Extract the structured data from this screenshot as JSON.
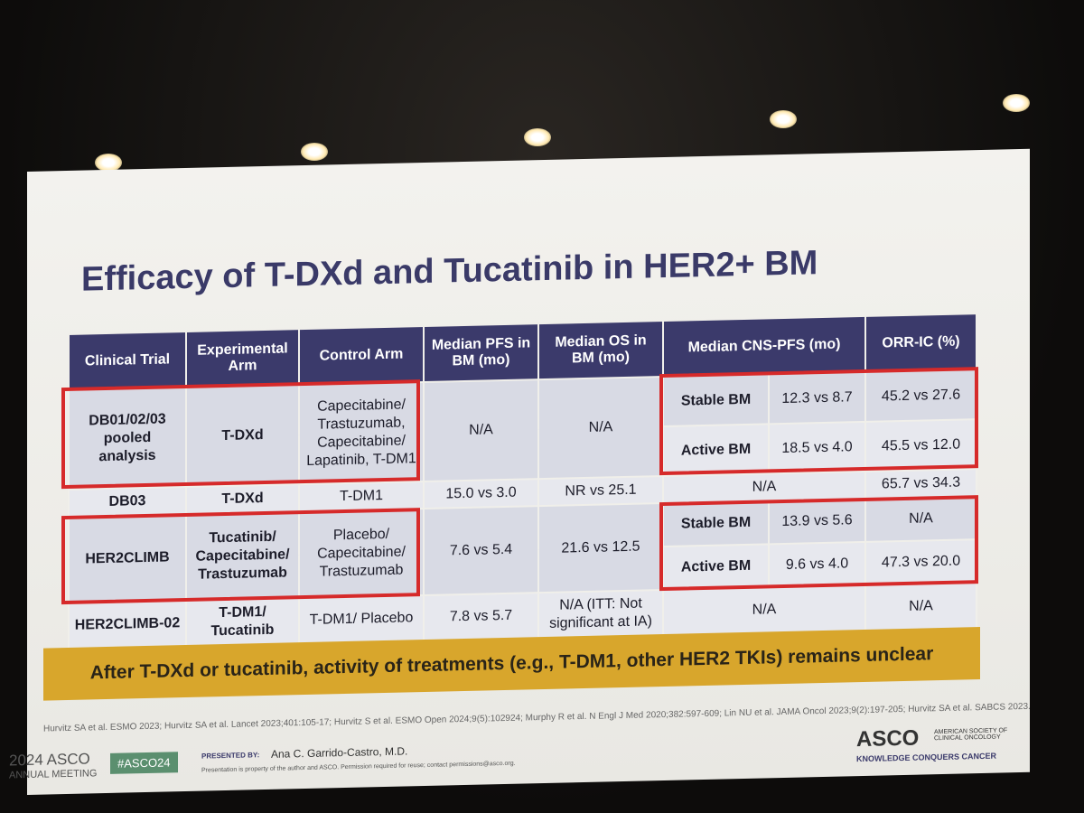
{
  "title": "Efficacy of T-DXd and Tucatinib in HER2+ BM",
  "table": {
    "header": [
      "Clinical Trial",
      "Experimental Arm",
      "Control Arm",
      "Median PFS in BM (mo)",
      "Median OS in BM (mo)",
      "Median CNS-PFS (mo)",
      "ORR-IC (%)"
    ],
    "rows": [
      {
        "trial": "DB01/02/03 pooled analysis",
        "experimental": "T-DXd",
        "control": "Capecitabine/ Trastuzumab, Capecitabine/ Lapatinib, T-DM1",
        "pfs": "N/A",
        "os": "N/A",
        "cns": [
          {
            "group": "Stable BM",
            "cns_pfs": "12.3 vs 8.7",
            "orr": "45.2 vs 27.6"
          },
          {
            "group": "Active BM",
            "cns_pfs": "18.5 vs 4.0",
            "orr": "45.5 vs 12.0"
          }
        ]
      },
      {
        "trial": "DB03",
        "experimental": "T-DXd",
        "control": "T-DM1",
        "pfs": "15.0 vs 3.0",
        "os": "NR vs 25.1",
        "cns_pfs": "N/A",
        "orr": "65.7 vs 34.3"
      },
      {
        "trial": "HER2CLIMB",
        "experimental": "Tucatinib/ Capecitabine/ Trastuzumab",
        "control": "Placebo/ Capecitabine/ Trastuzumab",
        "pfs": "7.6 vs 5.4",
        "os": "21.6 vs 12.5",
        "cns": [
          {
            "group": "Stable BM",
            "cns_pfs": "13.9 vs 5.6",
            "orr": "N/A"
          },
          {
            "group": "Active BM",
            "cns_pfs": "9.6 vs 4.0",
            "orr": "47.3 vs 20.0"
          }
        ]
      },
      {
        "trial": "HER2CLIMB-02",
        "experimental": "T-DM1/ Tucatinib",
        "control": "T-DM1/ Placebo",
        "pfs": "7.8 vs 5.7",
        "os": "N/A (ITT: Not significant at IA)",
        "cns_pfs": "N/A",
        "orr": "N/A"
      }
    ]
  },
  "banner": "After T-DXd or tucatinib, activity of treatments (e.g., T-DM1, other HER2 TKIs) remains unclear",
  "references": "Hurvitz SA et al. ESMO 2023; Hurvitz SA et al. Lancet 2023;401:105-17; Hurvitz S et al. ESMO Open 2024;9(5):102924; Murphy R et al. N Engl J Med 2020;382:597-609; Lin NU et al. JAMA Oncol 2023;9(2):197-205; Hurvitz SA et al. SABCS 2023.",
  "footer": {
    "meeting_year": "2024 ASCO",
    "meeting_name": "ANNUAL MEETING",
    "hashtag": "#ASCO24",
    "presented_by": "PRESENTED BY:",
    "presenter": "Ana C. Garrido-Castro, M.D.",
    "notice": "Presentation is property of the author and ASCO. Permission required for reuse; contact permissions@asco.org.",
    "logo": "ASCO",
    "society": "AMERICAN SOCIETY OF CLINICAL ONCOLOGY",
    "tagline": "KNOWLEDGE CONQUERS CANCER"
  }
}
